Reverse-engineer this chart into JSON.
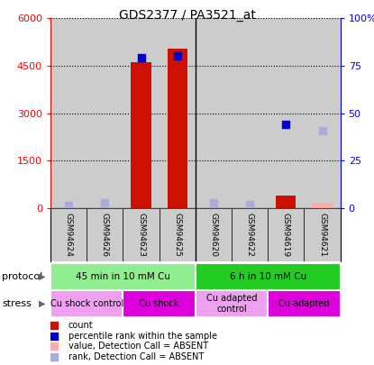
{
  "title": "GDS2377 / PA3521_at",
  "samples": [
    "GSM94624",
    "GSM94626",
    "GSM94623",
    "GSM94625",
    "GSM94620",
    "GSM94622",
    "GSM94619",
    "GSM94621"
  ],
  "counts": [
    0,
    0,
    4600,
    5050,
    0,
    0,
    400,
    0
  ],
  "counts_absent": [
    0,
    0,
    0,
    0,
    0,
    0,
    0,
    180
  ],
  "ranks": [
    0,
    0,
    79,
    80,
    0,
    0,
    44,
    0
  ],
  "ranks_absent": [
    1.5,
    3,
    0,
    0,
    3,
    2,
    0,
    41
  ],
  "ylim_left": [
    0,
    6000
  ],
  "ylim_right": [
    0,
    100
  ],
  "yticks_left": [
    0,
    1500,
    3000,
    4500,
    6000
  ],
  "yticks_right": [
    0,
    25,
    50,
    75,
    100
  ],
  "ytick_labels_left": [
    "0",
    "1500",
    "3000",
    "4500",
    "6000"
  ],
  "ytick_labels_right": [
    "0",
    "25",
    "50",
    "75",
    "100%"
  ],
  "protocol_groups": [
    {
      "label": "45 min in 10 mM Cu",
      "start": 0,
      "end": 4,
      "color": "#90ee90"
    },
    {
      "label": "6 h in 10 mM Cu",
      "start": 4,
      "end": 8,
      "color": "#22cc22"
    }
  ],
  "stress_groups": [
    {
      "label": "Cu shock control",
      "start": 0,
      "end": 2,
      "color": "#f0a0f0"
    },
    {
      "label": "Cu shock",
      "start": 2,
      "end": 4,
      "color": "#dd00dd"
    },
    {
      "label": "Cu adapted\ncontrol",
      "start": 4,
      "end": 6,
      "color": "#f0a0f0"
    },
    {
      "label": "Cu adapted",
      "start": 6,
      "end": 8,
      "color": "#dd00dd"
    }
  ],
  "bar_color_present": "#cc1100",
  "bar_color_absent": "#ffaaaa",
  "dot_color_present": "#0000cc",
  "dot_color_absent": "#aaaadd",
  "col_bg": "#cccccc",
  "bar_width": 0.55,
  "dot_size": 30
}
